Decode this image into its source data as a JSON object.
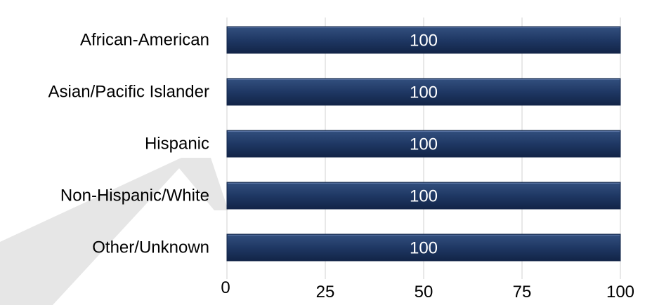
{
  "chart_data": {
    "type": "bar",
    "orientation": "horizontal",
    "title": "",
    "xlabel": "",
    "ylabel": "",
    "categories": [
      "African-American",
      "Asian/Pacific Islander",
      "Hispanic",
      "Non-Hispanic/White",
      "Other/Unknown"
    ],
    "values": [
      100,
      100,
      100,
      100,
      100
    ],
    "data_labels": [
      "100",
      "100",
      "100",
      "100",
      "100"
    ],
    "xlim": [
      0,
      100
    ],
    "x_ticks": [
      0,
      25,
      50,
      75,
      100
    ],
    "x_tick_labels": [
      "0",
      "25",
      "50",
      "75",
      "100"
    ],
    "grid": "vertical",
    "legend": "none",
    "colors": {
      "bar": "#1f3864",
      "bar_dark": "#122447",
      "bar_light": "#33507f",
      "grid": "#d0d0d0",
      "watermark": "#e6e6e6"
    }
  }
}
